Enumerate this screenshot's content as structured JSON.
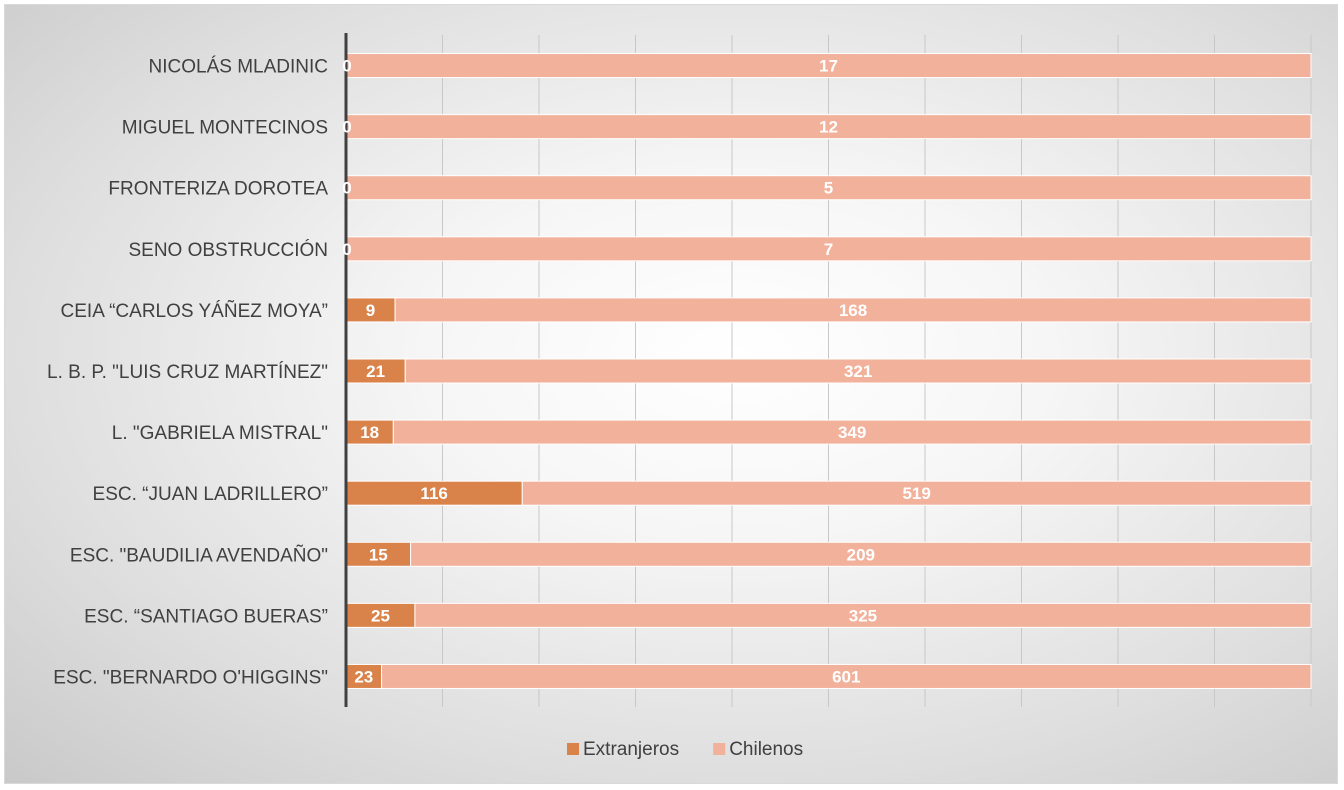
{
  "chart_data": {
    "type": "bar",
    "orientation": "horizontal",
    "stacked": "percent",
    "categories": [
      "NICOLÁS MLADINIC",
      "MIGUEL MONTECINOS",
      "FRONTERIZA DOROTEA",
      "SENO OBSTRUCCIÓN",
      "CEIA “CARLOS YÁÑEZ MOYA”",
      "L. B. P. \"LUIS CRUZ MARTÍNEZ\"",
      "L. \"GABRIELA MISTRAL\"",
      "ESC. “JUAN LADRILLERO”",
      "ESC. \"BAUDILIA AVENDAÑO\"",
      "ESC. “SANTIAGO BUERAS”",
      "ESC. \"BERNARDO O'HIGGINS\""
    ],
    "series": [
      {
        "name": "Extranjeros",
        "color": "#d9834b",
        "values": [
          0,
          0,
          0,
          0,
          9,
          21,
          18,
          116,
          15,
          25,
          23
        ]
      },
      {
        "name": "Chilenos",
        "color": "#f2b19b",
        "values": [
          17,
          12,
          5,
          7,
          168,
          321,
          349,
          519,
          209,
          325,
          601
        ]
      }
    ],
    "xlim": [
      0,
      100
    ],
    "grid": true,
    "legend_position": "bottom"
  }
}
